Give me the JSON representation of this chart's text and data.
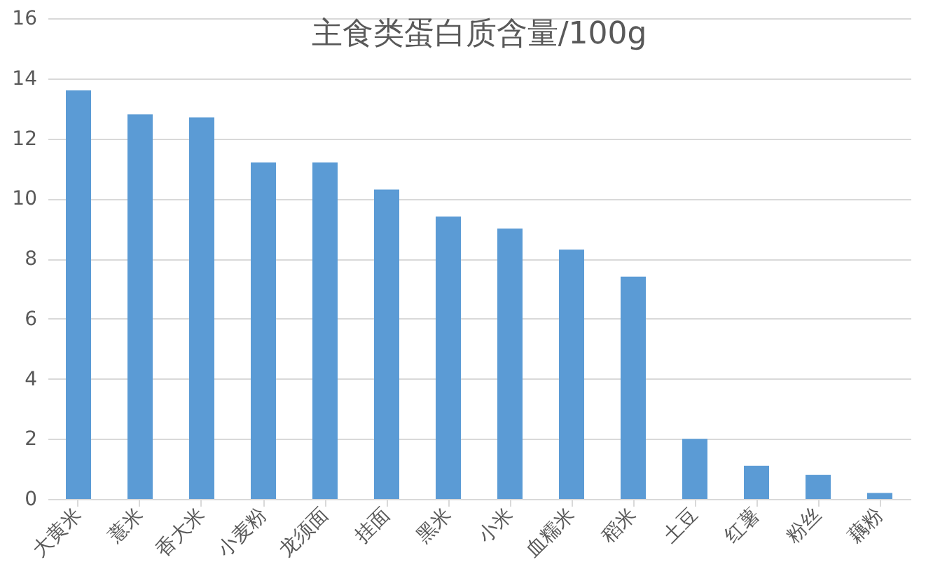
{
  "chart_data": {
    "type": "bar",
    "title": "主食类蛋白质含量/100g",
    "categories": [
      "大黄米",
      "薏米",
      "香大米",
      "小麦粉",
      "龙须面",
      "挂面",
      "黑米",
      "小米",
      "血糯米",
      "稻米",
      "土豆",
      "红薯",
      "粉丝",
      "藕粉"
    ],
    "values": [
      13.6,
      12.8,
      12.7,
      11.2,
      11.2,
      10.3,
      9.4,
      9.0,
      8.3,
      7.4,
      2.0,
      1.1,
      0.8,
      0.2
    ],
    "color": "#5b9bd5",
    "ylim": [
      0,
      16
    ],
    "yticks": [
      0,
      2,
      4,
      6,
      8,
      10,
      12,
      14,
      16
    ],
    "grid": "y"
  }
}
